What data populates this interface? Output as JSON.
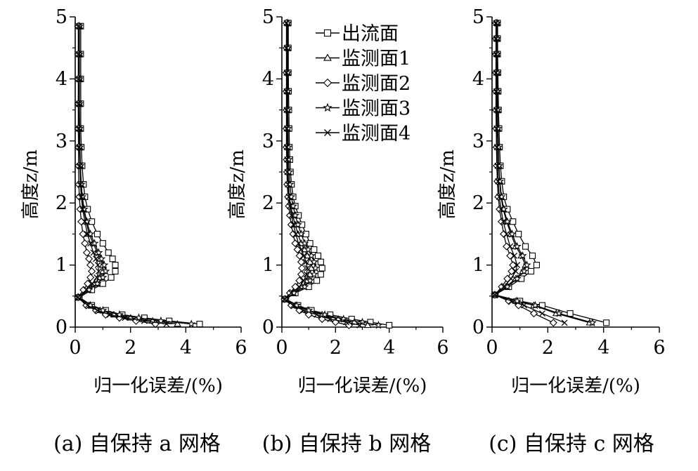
{
  "chart_data": [
    {
      "type": "line",
      "caption": "(a) 自保持 a 网格",
      "xlabel": "归一化误差/(%)",
      "ylabel": "高度z/m",
      "xlim": [
        0,
        6
      ],
      "ylim": [
        0,
        5
      ],
      "xticks": [
        "0",
        "2",
        "4",
        "6"
      ],
      "yticks": [
        "0",
        "1",
        "2",
        "3",
        "4",
        "5"
      ],
      "grid": false,
      "series": [
        {
          "name": "出流面",
          "marker": "square",
          "x": [
            4.5,
            3.4,
            2.5,
            1.7,
            1.1,
            0.6,
            0.15,
            0.6,
            1.0,
            1.3,
            1.45,
            1.45,
            1.35,
            1.2,
            1.0,
            0.8,
            0.6,
            0.45,
            0.35,
            0.3,
            0.25,
            0.22,
            0.2,
            0.2,
            0.2,
            0.2,
            0.2
          ],
          "y": [
            0.05,
            0.1,
            0.15,
            0.2,
            0.27,
            0.35,
            0.48,
            0.6,
            0.7,
            0.8,
            0.9,
            1.0,
            1.1,
            1.2,
            1.35,
            1.5,
            1.7,
            1.9,
            2.1,
            2.3,
            2.6,
            2.9,
            3.2,
            3.6,
            4.0,
            4.4,
            4.85
          ]
        },
        {
          "name": "监测面1",
          "marker": "triangle",
          "x": [
            3.7,
            2.8,
            2.0,
            1.4,
            0.9,
            0.5,
            0.12,
            0.45,
            0.7,
            0.9,
            1.0,
            1.0,
            0.9,
            0.8,
            0.65,
            0.5,
            0.4,
            0.3,
            0.25,
            0.2,
            0.18,
            0.16,
            0.15,
            0.15,
            0.15,
            0.15,
            0.15
          ],
          "y": [
            0.05,
            0.1,
            0.15,
            0.2,
            0.27,
            0.35,
            0.48,
            0.6,
            0.7,
            0.8,
            0.9,
            1.0,
            1.1,
            1.2,
            1.35,
            1.5,
            1.7,
            1.9,
            2.1,
            2.3,
            2.6,
            2.9,
            3.2,
            3.6,
            4.0,
            4.4,
            4.85
          ]
        },
        {
          "name": "监测面2",
          "marker": "diamond",
          "x": [
            2.9,
            2.2,
            1.6,
            1.1,
            0.75,
            0.4,
            0.1,
            0.3,
            0.45,
            0.55,
            0.6,
            0.55,
            0.5,
            0.42,
            0.35,
            0.28,
            0.22,
            0.18,
            0.15,
            0.13,
            0.12,
            0.12,
            0.11,
            0.11,
            0.11,
            0.11,
            0.11
          ],
          "y": [
            0.05,
            0.1,
            0.15,
            0.2,
            0.27,
            0.35,
            0.48,
            0.6,
            0.7,
            0.8,
            0.9,
            1.0,
            1.1,
            1.2,
            1.35,
            1.5,
            1.7,
            1.9,
            2.1,
            2.3,
            2.6,
            2.9,
            3.2,
            3.6,
            4.0,
            4.4,
            4.85
          ]
        },
        {
          "name": "监测面3",
          "marker": "star",
          "x": [
            4.2,
            3.1,
            2.3,
            1.6,
            1.0,
            0.55,
            0.12,
            0.5,
            0.8,
            1.0,
            1.1,
            1.05,
            0.95,
            0.85,
            0.7,
            0.55,
            0.42,
            0.32,
            0.26,
            0.22,
            0.19,
            0.17,
            0.16,
            0.15,
            0.15,
            0.15,
            0.15
          ],
          "y": [
            0.05,
            0.1,
            0.15,
            0.2,
            0.27,
            0.35,
            0.48,
            0.6,
            0.7,
            0.8,
            0.9,
            1.0,
            1.1,
            1.2,
            1.35,
            1.5,
            1.7,
            1.9,
            2.1,
            2.3,
            2.6,
            2.9,
            3.2,
            3.6,
            4.0,
            4.4,
            4.85
          ]
        },
        {
          "name": "监测面4",
          "marker": "x",
          "x": [
            3.3,
            2.5,
            1.8,
            1.25,
            0.8,
            0.45,
            0.1,
            0.4,
            0.62,
            0.78,
            0.85,
            0.82,
            0.75,
            0.66,
            0.55,
            0.44,
            0.35,
            0.27,
            0.22,
            0.19,
            0.17,
            0.15,
            0.14,
            0.14,
            0.14,
            0.14,
            0.14
          ],
          "y": [
            0.05,
            0.1,
            0.15,
            0.2,
            0.27,
            0.35,
            0.48,
            0.6,
            0.7,
            0.8,
            0.9,
            1.0,
            1.1,
            1.2,
            1.35,
            1.5,
            1.7,
            1.9,
            2.1,
            2.3,
            2.6,
            2.9,
            3.2,
            3.6,
            4.0,
            4.4,
            4.85
          ]
        }
      ]
    },
    {
      "type": "line",
      "caption": "(b) 自保持 b 网格",
      "xlabel": "归一化误差/(%)",
      "ylabel": "高度z/m",
      "xlim": [
        0,
        6
      ],
      "ylim": [
        0,
        5
      ],
      "xticks": [
        "0",
        "2",
        "4",
        "6"
      ],
      "yticks": [
        "0",
        "1",
        "2",
        "3",
        "4",
        "5"
      ],
      "grid": false,
      "legend": {
        "position": "top-right",
        "entries": [
          "出流面",
          "监测面1",
          "监测面2",
          "监测面3",
          "监测面4"
        ]
      },
      "series": [
        {
          "name": "出流面",
          "marker": "square",
          "x": [
            4.0,
            3.3,
            2.6,
            1.8,
            1.1,
            0.6,
            0.15,
            0.5,
            1.0,
            1.3,
            1.45,
            1.5,
            1.45,
            1.35,
            1.2,
            1.05,
            0.9,
            0.75,
            0.62,
            0.5,
            0.42,
            0.36,
            0.32,
            0.3,
            0.28,
            0.27,
            0.26,
            0.25,
            0.24,
            0.24,
            0.24
          ],
          "y": [
            0.03,
            0.08,
            0.13,
            0.2,
            0.27,
            0.35,
            0.45,
            0.55,
            0.65,
            0.75,
            0.85,
            0.95,
            1.05,
            1.15,
            1.25,
            1.35,
            1.5,
            1.65,
            1.8,
            1.95,
            2.1,
            2.3,
            2.5,
            2.7,
            2.9,
            3.2,
            3.5,
            3.8,
            4.1,
            4.5,
            4.9
          ]
        },
        {
          "name": "监测面1",
          "marker": "triangle",
          "x": [
            3.2,
            2.7,
            2.1,
            1.5,
            0.95,
            0.5,
            0.12,
            0.4,
            0.75,
            0.95,
            1.05,
            1.1,
            1.05,
            0.95,
            0.85,
            0.72,
            0.6,
            0.5,
            0.4,
            0.33,
            0.28,
            0.25,
            0.23,
            0.22,
            0.21,
            0.2,
            0.2,
            0.2,
            0.2,
            0.2,
            0.2
          ],
          "y": [
            0.03,
            0.08,
            0.13,
            0.2,
            0.27,
            0.35,
            0.45,
            0.55,
            0.65,
            0.75,
            0.85,
            0.95,
            1.05,
            1.15,
            1.25,
            1.35,
            1.5,
            1.65,
            1.8,
            1.95,
            2.1,
            2.3,
            2.5,
            2.7,
            2.9,
            3.2,
            3.5,
            3.8,
            4.1,
            4.5,
            4.9
          ]
        },
        {
          "name": "监测面2",
          "marker": "diamond",
          "x": [
            2.5,
            2.0,
            1.5,
            1.0,
            0.65,
            0.35,
            0.1,
            0.3,
            0.5,
            0.65,
            0.72,
            0.75,
            0.72,
            0.66,
            0.58,
            0.5,
            0.42,
            0.35,
            0.3,
            0.26,
            0.23,
            0.2,
            0.19,
            0.18,
            0.17,
            0.17,
            0.17,
            0.17,
            0.17,
            0.17,
            0.17
          ],
          "y": [
            0.03,
            0.08,
            0.13,
            0.2,
            0.27,
            0.35,
            0.45,
            0.55,
            0.65,
            0.75,
            0.85,
            0.95,
            1.05,
            1.15,
            1.25,
            1.35,
            1.5,
            1.65,
            1.8,
            1.95,
            2.1,
            2.3,
            2.5,
            2.7,
            2.9,
            3.2,
            3.5,
            3.8,
            4.1,
            4.5,
            4.9
          ]
        },
        {
          "name": "监测面3",
          "marker": "star",
          "x": [
            3.6,
            3.0,
            2.3,
            1.6,
            1.0,
            0.55,
            0.13,
            0.45,
            0.85,
            1.05,
            1.2,
            1.25,
            1.2,
            1.1,
            0.98,
            0.85,
            0.72,
            0.6,
            0.5,
            0.42,
            0.35,
            0.3,
            0.27,
            0.25,
            0.24,
            0.23,
            0.22,
            0.22,
            0.22,
            0.22,
            0.22
          ],
          "y": [
            0.03,
            0.08,
            0.13,
            0.2,
            0.27,
            0.35,
            0.45,
            0.55,
            0.65,
            0.75,
            0.85,
            0.95,
            1.05,
            1.15,
            1.25,
            1.35,
            1.5,
            1.65,
            1.8,
            1.95,
            2.1,
            2.3,
            2.5,
            2.7,
            2.9,
            3.2,
            3.5,
            3.8,
            4.1,
            4.5,
            4.9
          ]
        },
        {
          "name": "监测面4",
          "marker": "x",
          "x": [
            2.9,
            2.4,
            1.8,
            1.3,
            0.8,
            0.42,
            0.11,
            0.35,
            0.65,
            0.82,
            0.92,
            0.95,
            0.9,
            0.82,
            0.72,
            0.62,
            0.52,
            0.43,
            0.36,
            0.3,
            0.26,
            0.23,
            0.21,
            0.2,
            0.19,
            0.19,
            0.18,
            0.18,
            0.18,
            0.18,
            0.18
          ],
          "y": [
            0.03,
            0.08,
            0.13,
            0.2,
            0.27,
            0.35,
            0.45,
            0.55,
            0.65,
            0.75,
            0.85,
            0.95,
            1.05,
            1.15,
            1.25,
            1.35,
            1.5,
            1.65,
            1.8,
            1.95,
            2.1,
            2.3,
            2.5,
            2.7,
            2.9,
            3.2,
            3.5,
            3.8,
            4.1,
            4.5,
            4.9
          ]
        }
      ]
    },
    {
      "type": "line",
      "caption": "(c) 自保持 c 网格",
      "xlabel": "归一化误差/(%)",
      "ylabel": "高度z/m",
      "xlim": [
        0,
        6
      ],
      "ylim": [
        0,
        5
      ],
      "xticks": [
        "0",
        "2",
        "4",
        "6"
      ],
      "yticks": [
        "0",
        "1",
        "2",
        "3",
        "4",
        "5"
      ],
      "grid": false,
      "series": [
        {
          "name": "出流面",
          "marker": "square",
          "x": [
            4.1,
            2.8,
            1.8,
            1.0,
            0.1,
            0.6,
            1.05,
            1.4,
            1.6,
            1.45,
            1.2,
            0.95,
            0.75,
            0.55,
            0.42,
            0.35,
            0.3,
            0.27,
            0.25,
            0.23,
            0.22,
            0.21,
            0.2,
            0.2,
            0.2
          ],
          "y": [
            0.07,
            0.22,
            0.35,
            0.42,
            0.52,
            0.65,
            0.78,
            0.9,
            1.0,
            1.15,
            1.3,
            1.5,
            1.7,
            1.9,
            2.1,
            2.35,
            2.6,
            2.9,
            3.2,
            3.5,
            3.8,
            4.1,
            4.4,
            4.65,
            4.9
          ]
        },
        {
          "name": "监测面1",
          "marker": "triangle",
          "x": [
            3.5,
            2.3,
            1.5,
            0.85,
            0.1,
            0.5,
            0.85,
            1.1,
            1.2,
            1.05,
            0.85,
            0.68,
            0.52,
            0.4,
            0.32,
            0.27,
            0.24,
            0.22,
            0.2,
            0.19,
            0.18,
            0.18,
            0.17,
            0.17,
            0.17
          ],
          "y": [
            0.07,
            0.22,
            0.35,
            0.42,
            0.52,
            0.65,
            0.78,
            0.9,
            1.0,
            1.15,
            1.3,
            1.5,
            1.7,
            1.9,
            2.1,
            2.35,
            2.6,
            2.9,
            3.2,
            3.5,
            3.8,
            4.1,
            4.4,
            4.65,
            4.9
          ]
        },
        {
          "name": "监测面2",
          "marker": "diamond",
          "x": [
            2.2,
            1.5,
            0.95,
            0.6,
            0.1,
            0.35,
            0.55,
            0.7,
            0.75,
            0.65,
            0.52,
            0.42,
            0.34,
            0.27,
            0.22,
            0.19,
            0.17,
            0.16,
            0.15,
            0.14,
            0.14,
            0.14,
            0.14,
            0.14,
            0.14
          ],
          "y": [
            0.07,
            0.22,
            0.35,
            0.42,
            0.52,
            0.65,
            0.78,
            0.9,
            1.0,
            1.15,
            1.3,
            1.5,
            1.7,
            1.9,
            2.1,
            2.35,
            2.6,
            2.9,
            3.2,
            3.5,
            3.8,
            4.1,
            4.4,
            4.65,
            4.9
          ]
        },
        {
          "name": "监测面3",
          "marker": "star",
          "x": [
            3.6,
            2.4,
            1.55,
            0.9,
            0.1,
            0.55,
            0.9,
            1.15,
            1.25,
            1.1,
            0.9,
            0.72,
            0.55,
            0.42,
            0.34,
            0.28,
            0.25,
            0.23,
            0.21,
            0.2,
            0.19,
            0.19,
            0.18,
            0.18,
            0.18
          ],
          "y": [
            0.07,
            0.22,
            0.35,
            0.42,
            0.52,
            0.65,
            0.78,
            0.9,
            1.0,
            1.15,
            1.3,
            1.5,
            1.7,
            1.9,
            2.1,
            2.35,
            2.6,
            2.9,
            3.2,
            3.5,
            3.8,
            4.1,
            4.4,
            4.65,
            4.9
          ]
        },
        {
          "name": "监测面4",
          "marker": "x",
          "x": [
            2.6,
            1.8,
            1.15,
            0.7,
            0.1,
            0.42,
            0.68,
            0.85,
            0.9,
            0.8,
            0.65,
            0.52,
            0.4,
            0.32,
            0.26,
            0.22,
            0.2,
            0.18,
            0.17,
            0.16,
            0.16,
            0.15,
            0.15,
            0.15,
            0.15
          ],
          "y": [
            0.07,
            0.22,
            0.35,
            0.42,
            0.52,
            0.65,
            0.78,
            0.9,
            1.0,
            1.15,
            1.3,
            1.5,
            1.7,
            1.9,
            2.1,
            2.35,
            2.6,
            2.9,
            3.2,
            3.5,
            3.8,
            4.1,
            4.4,
            4.65,
            4.9
          ]
        }
      ]
    }
  ]
}
